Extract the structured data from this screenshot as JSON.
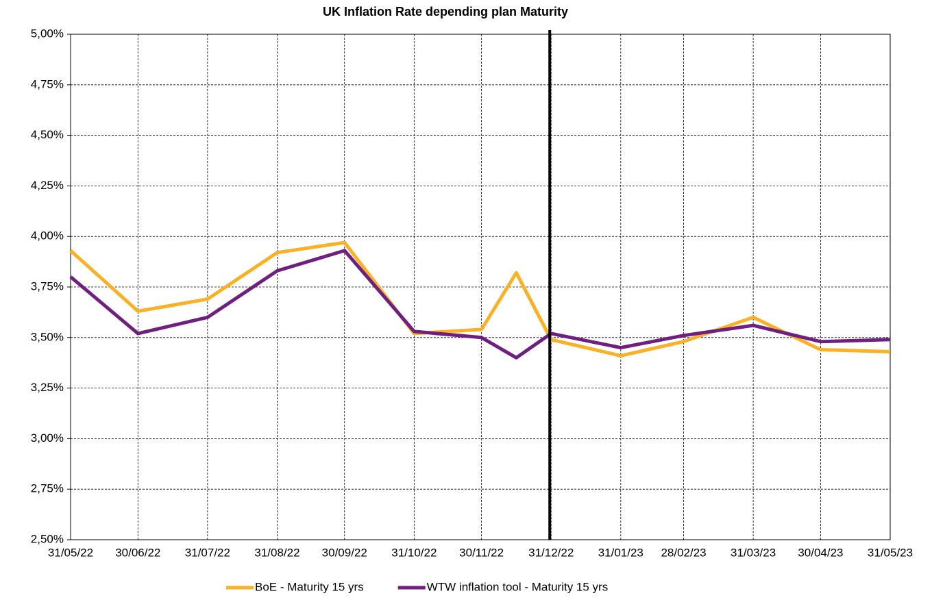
{
  "chart_data": {
    "type": "line",
    "title": "UK Inflation Rate depending plan Maturity",
    "x": [
      "31/05/22",
      "30/06/22",
      "31/07/22",
      "31/08/22",
      "30/09/22",
      "31/10/22",
      "30/11/22",
      null,
      "31/12/22",
      "31/01/23",
      "28/02/23",
      "31/03/23",
      "30/04/23",
      "31/05/23"
    ],
    "series": [
      {
        "name": "BoE - Maturity 15 yrs",
        "color": "#fbb125",
        "values": [
          3.93,
          3.63,
          3.69,
          3.92,
          3.97,
          3.52,
          3.54,
          3.82,
          3.49,
          3.41,
          3.48,
          3.6,
          3.44,
          3.43
        ]
      },
      {
        "name": "WTW inflation tool - Maturity 15 yrs",
        "color": "#6f1f7f",
        "values": [
          3.8,
          3.52,
          3.6,
          3.83,
          3.93,
          3.53,
          3.5,
          3.4,
          3.52,
          3.45,
          3.51,
          3.56,
          3.48,
          3.49
        ]
      }
    ],
    "ylim": [
      2.5,
      5
    ],
    "yticks": [
      {
        "value": 2.5,
        "label": "2,50%"
      },
      {
        "value": 2.75,
        "label": "2,75%"
      },
      {
        "value": 3,
        "label": "3,00%"
      },
      {
        "value": 3.25,
        "label": "3,25%"
      },
      {
        "value": 3.5,
        "label": "3,50%"
      },
      {
        "value": 3.75,
        "label": "3,75%"
      },
      {
        "value": 4,
        "label": "4,00%"
      },
      {
        "value": 4.25,
        "label": "4,25%"
      },
      {
        "value": 4.5,
        "label": "4,50%"
      },
      {
        "value": 4.75,
        "label": "4,75%"
      },
      {
        "value": 5,
        "label": "5,00%"
      }
    ],
    "grid": true,
    "vline_x": "31/12/22",
    "legend": "bottom"
  }
}
